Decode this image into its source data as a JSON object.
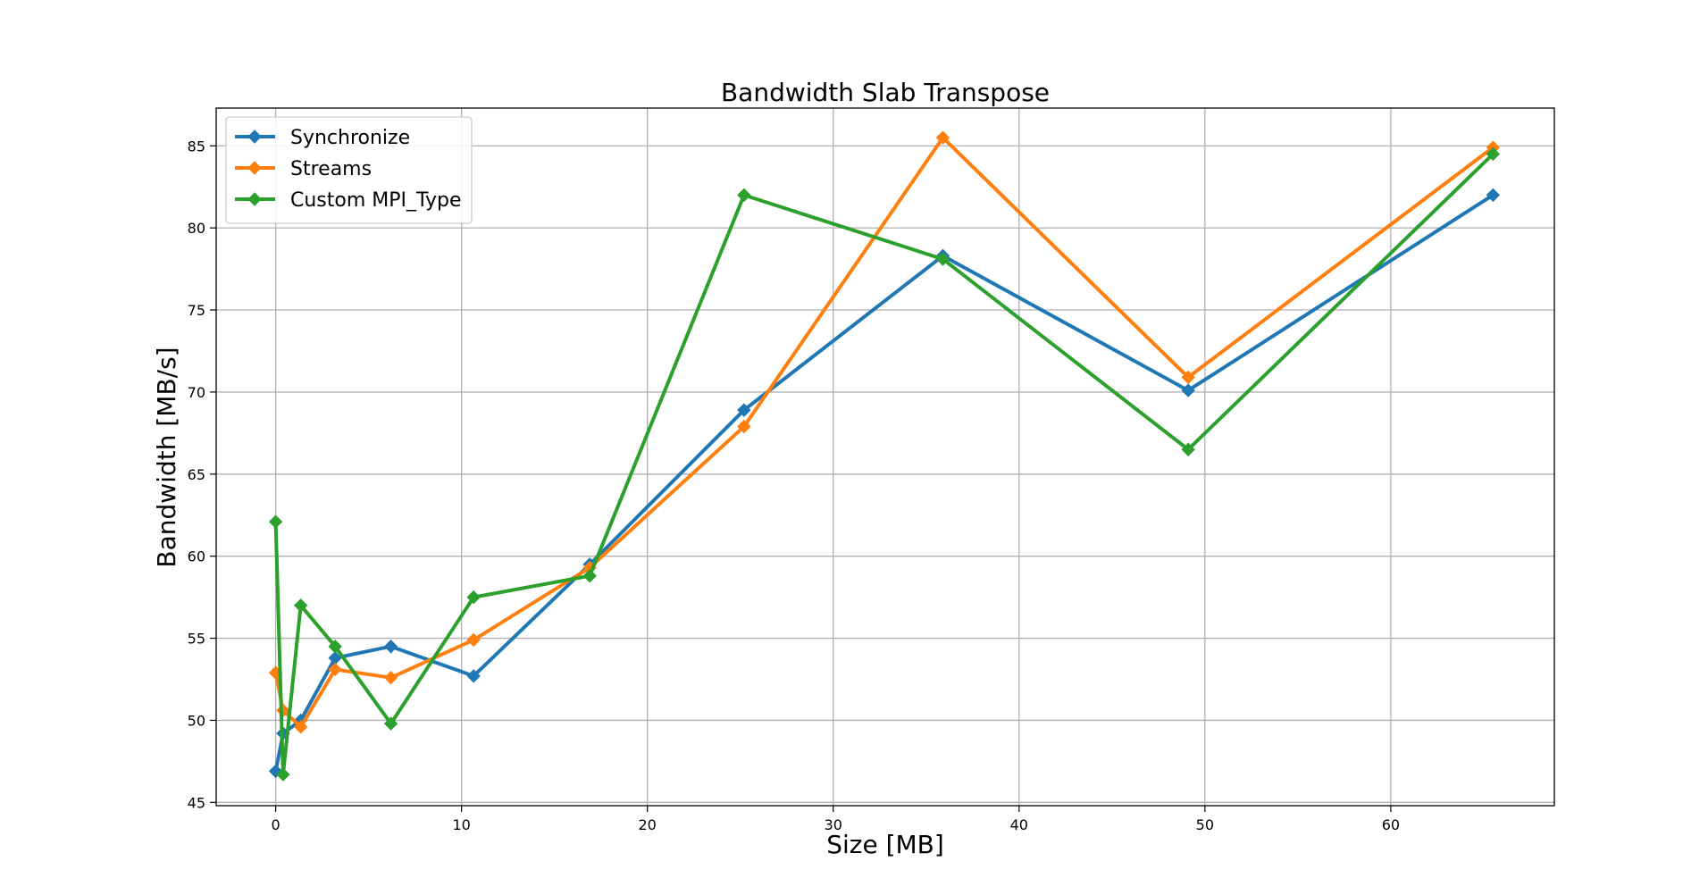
{
  "chart_data": {
    "type": "line",
    "title": "Bandwidth Slab Transpose",
    "xlabel": "Size [MB]",
    "ylabel": "Bandwidth [MB/s]",
    "xlim": [
      -3.2,
      68.8
    ],
    "ylim": [
      44.8,
      87.3
    ],
    "xticks": [
      0,
      10,
      20,
      30,
      40,
      50,
      60
    ],
    "yticks": [
      45,
      50,
      55,
      60,
      65,
      70,
      75,
      80,
      85
    ],
    "grid": true,
    "legend_position": "upper-left",
    "marker": "diamond",
    "x": [
      0.0,
      0.4,
      1.35,
      3.2,
      6.2,
      10.65,
      16.9,
      25.2,
      35.9,
      49.1,
      65.5
    ],
    "series": [
      {
        "name": "Synchronize",
        "color": "#1f77b4",
        "values": [
          46.9,
          49.2,
          50.0,
          53.8,
          54.5,
          52.7,
          59.5,
          68.9,
          78.3,
          70.1,
          82.0
        ]
      },
      {
        "name": "Streams",
        "color": "#ff7f0e",
        "values": [
          52.9,
          50.6,
          49.6,
          53.1,
          52.6,
          54.9,
          59.3,
          67.9,
          85.5,
          70.9,
          84.9
        ]
      },
      {
        "name": "Custom MPI_Type",
        "color": "#2ca02c",
        "values": [
          62.1,
          46.7,
          57.0,
          54.5,
          49.8,
          57.5,
          58.8,
          82.0,
          78.1,
          66.5,
          84.5
        ]
      }
    ]
  }
}
